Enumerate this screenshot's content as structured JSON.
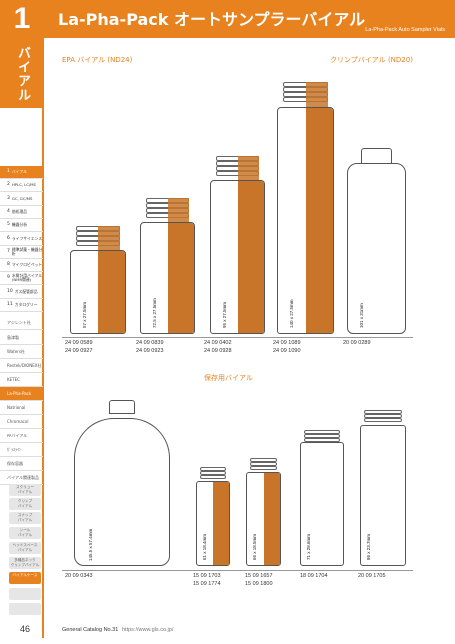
{
  "header": {
    "chapter_number": "1",
    "title": "La-Pha-Pack オートサンプラーバイアル",
    "subtitle": "La-Pha-Pack Auto Sampler Vials"
  },
  "sidebar": {
    "tab_label": "バイアル",
    "chapters": [
      {
        "n": "1",
        "label": "バイアル"
      },
      {
        "n": "2",
        "label": "HPLC, LC/MS"
      },
      {
        "n": "3",
        "label": "GC, GC/MS"
      },
      {
        "n": "4",
        "label": "前処理品"
      },
      {
        "n": "5",
        "label": "機器分析"
      },
      {
        "n": "6",
        "label": "ライフサイエンス"
      },
      {
        "n": "7",
        "label": "標準試薬・機器分析"
      },
      {
        "n": "8",
        "label": "マイクロピペット"
      },
      {
        "n": "9",
        "label": "水質計用バイアル(NMR関連)"
      },
      {
        "n": "10",
        "label": "ガス配管部品"
      },
      {
        "n": "11",
        "label": "カタログリー"
      }
    ],
    "sub_items": [
      "アジレント社",
      "島津製",
      "Waters社",
      "Restek/DIONEX社",
      "KETEC",
      "La-Pha-Pack",
      "Natrional",
      "Chromacol",
      "ᴘᴘバイアル",
      "ｶﾞﾗｽﾗｲﾝ",
      "保存容器",
      "バイアル関連製品"
    ],
    "pills": [
      "スクリュー\nバイアル",
      "クリンプ\nバイアル",
      "スナップ\nバイアル",
      "シール\nバイアル",
      "ヘッドスペース\nバイアル",
      "多種品ネック\nクリンプバイアル",
      "バイアルケース"
    ]
  },
  "section1": {
    "label_left": "EPA バイアル (ND24)",
    "label_right": "クリンプバイアル (ND20)",
    "vials": [
      {
        "dim": "57 x 27.5mm",
        "codes": [
          "24 09 0589",
          "24 09 0927"
        ]
      },
      {
        "dim": "72.5 x 27.5mm",
        "codes": [
          "24 09 0839",
          "24 09 0923"
        ]
      },
      {
        "dim": "95 x 27.5mm",
        "codes": [
          "24 09 0402",
          "24 09 0928"
        ]
      },
      {
        "dim": "140 x 27.5mm",
        "codes": [
          "24 09 1089",
          "24 09 1090"
        ]
      },
      {
        "dim": "101 x 31mm",
        "codes": [
          "20 09 0289"
        ]
      }
    ]
  },
  "section2": {
    "label": "保存用バイアル",
    "vials": [
      {
        "dim": "145.5 x 57.4mm",
        "codes": [
          "20 09 0343"
        ]
      },
      {
        "dim": "61 x 18.4mm",
        "codes": [
          "15 09 1703",
          "15 09 1774"
        ]
      },
      {
        "dim": "66 x 18.5mm",
        "codes": [
          "15 09 1657",
          "15 09 1800"
        ]
      },
      {
        "dim": "71 x 28.6mm",
        "codes": [
          "18 09 1704"
        ]
      },
      {
        "dim": "86 x 23.7mm",
        "codes": [
          "20 09 1705"
        ]
      }
    ]
  },
  "footer": {
    "page": "46",
    "catalog": "General Catalog No.31",
    "url": "https://www.gls.co.jp/"
  },
  "colors": {
    "accent": "#e8821f",
    "amber": "#c8752a"
  }
}
